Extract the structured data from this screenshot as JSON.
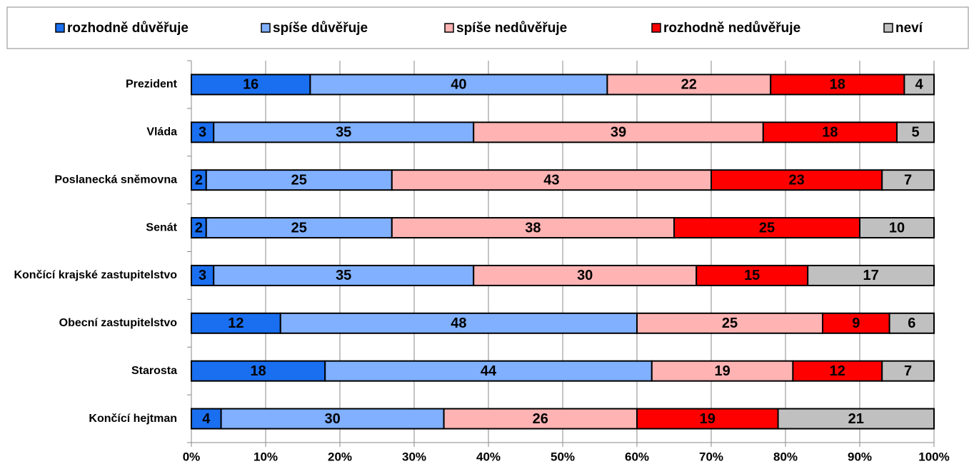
{
  "chart_data": {
    "type": "stacked-bar-horizontal",
    "categories": [
      "Prezident",
      "Vláda",
      "Poslanecká sněmovna",
      "Senát",
      "Končící krajské zastupitelstvo",
      "Obecní zastupitelstvo",
      "Starosta",
      "Končící hejtman"
    ],
    "series": [
      {
        "name": "rozhodně důvěřuje",
        "color": "#1a6ff0",
        "values": [
          16,
          3,
          2,
          2,
          3,
          12,
          18,
          4
        ]
      },
      {
        "name": "spíše důvěřuje",
        "color": "#80b0ff",
        "values": [
          40,
          35,
          25,
          25,
          35,
          48,
          44,
          30
        ]
      },
      {
        "name": "spíše nedůvěřuje",
        "color": "#ffb3b3",
        "values": [
          22,
          39,
          43,
          38,
          30,
          25,
          19,
          26
        ]
      },
      {
        "name": "rozhodně nedůvěřuje",
        "color": "#ff0000",
        "values": [
          18,
          18,
          23,
          25,
          15,
          9,
          12,
          19
        ]
      },
      {
        "name": "neví",
        "color": "#c0c0c0",
        "values": [
          4,
          5,
          7,
          10,
          17,
          6,
          7,
          21
        ]
      }
    ],
    "xlim": [
      0,
      100
    ],
    "xticks": [
      {
        "value": 0,
        "label": "0%"
      },
      {
        "value": 10,
        "label": "10%"
      },
      {
        "value": 20,
        "label": "20%"
      },
      {
        "value": 30,
        "label": "30%"
      },
      {
        "value": 40,
        "label": "40%"
      },
      {
        "value": 50,
        "label": "50%"
      },
      {
        "value": 60,
        "label": "60%"
      },
      {
        "value": 70,
        "label": "70%"
      },
      {
        "value": 80,
        "label": "80%"
      },
      {
        "value": 90,
        "label": "90%"
      },
      {
        "value": 100,
        "label": "100%"
      }
    ],
    "grid": true,
    "legend": "top",
    "data_labels": true
  }
}
